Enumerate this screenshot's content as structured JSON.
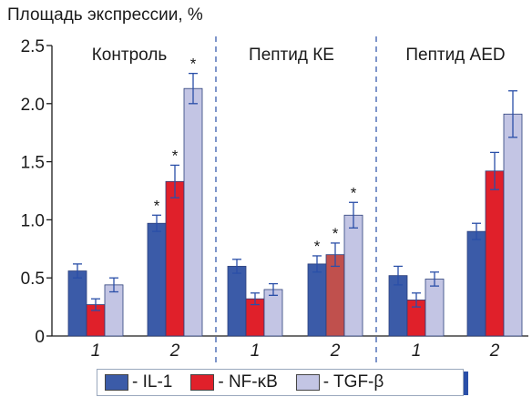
{
  "chart_data": {
    "type": "bar",
    "ylabel": "Площадь экспрессии, %",
    "ylim": [
      0,
      2.5
    ],
    "yticks": [
      "0",
      "0.5",
      "1.0",
      "1.5",
      "2.0",
      "2.5"
    ],
    "grid": false,
    "legend_position": "bottom",
    "groups": [
      {
        "label": "Контроль",
        "subgroups": [
          {
            "label": "1",
            "values": [
              0.56,
              0.27,
              0.44
            ],
            "errors": [
              0.06,
              0.05,
              0.06
            ],
            "stars": [
              false,
              false,
              false
            ]
          },
          {
            "label": "2",
            "values": [
              0.97,
              1.33,
              2.13
            ],
            "errors": [
              0.07,
              0.14,
              0.13
            ],
            "stars": [
              true,
              true,
              true
            ]
          }
        ]
      },
      {
        "label": "Пептид КЕ",
        "subgroups": [
          {
            "label": "1",
            "values": [
              0.6,
              0.32,
              0.4
            ],
            "errors": [
              0.06,
              0.05,
              0.05
            ],
            "stars": [
              false,
              false,
              false
            ]
          },
          {
            "label": "2",
            "values": [
              0.62,
              0.7,
              1.04
            ],
            "errors": [
              0.07,
              0.1,
              0.11
            ],
            "stars": [
              true,
              true,
              true
            ]
          }
        ]
      },
      {
        "label": "Пептид AED",
        "subgroups": [
          {
            "label": "1",
            "values": [
              0.52,
              0.31,
              0.49
            ],
            "errors": [
              0.08,
              0.06,
              0.06
            ],
            "stars": [
              false,
              false,
              false
            ]
          },
          {
            "label": "2",
            "values": [
              0.9,
              1.42,
              1.91
            ],
            "errors": [
              0.07,
              0.16,
              0.2
            ],
            "stars": [
              false,
              false,
              false
            ]
          }
        ]
      }
    ],
    "series": [
      {
        "name": "IL-1",
        "color": "#3b5ba8"
      },
      {
        "name": "NF-κB",
        "color": "#e0202a"
      },
      {
        "name": "TGF-β",
        "color": "#c3c5e4"
      }
    ],
    "special_colors": {
      "peptide_ke_sub2_nfkb": "#c0504d"
    },
    "star_label": "*"
  },
  "legend": {
    "items": [
      {
        "label": "- IL-1"
      },
      {
        "label": "- NF-κB"
      },
      {
        "label": "- TGF-β"
      }
    ]
  }
}
